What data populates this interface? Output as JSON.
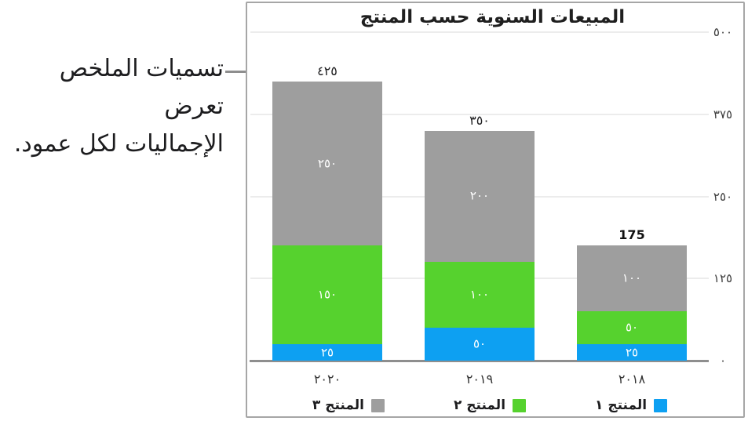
{
  "annotation": {
    "lines": [
      "تسميات الملخص تعرض",
      "الإجماليات لكل عمود."
    ]
  },
  "chart_data": {
    "type": "bar",
    "stacked": true,
    "direction": "rtl",
    "title": "المبيعات السنوية حسب المنتج",
    "categories": [
      "٢٠٢٠",
      "٢٠١٩",
      "٢٠١٨"
    ],
    "series": [
      {
        "name": "المنتج ١",
        "color": "#0da0f2",
        "values": [
          25,
          50,
          25
        ],
        "value_labels": [
          "٢٥",
          "٥٠",
          "٢٥"
        ]
      },
      {
        "name": "المنتج ٢",
        "color": "#56d22e",
        "values": [
          150,
          100,
          50
        ],
        "value_labels": [
          "١٥٠",
          "١٠٠",
          "٥٠"
        ]
      },
      {
        "name": "المنتج ٣",
        "color": "#9e9e9e",
        "values": [
          250,
          200,
          100
        ],
        "value_labels": [
          "٢٥٠",
          "٢٠٠",
          "١٠٠"
        ]
      }
    ],
    "totals": {
      "values": [
        425,
        350,
        175
      ],
      "labels": [
        "٤٢٥",
        "٣٥٠",
        "175"
      ],
      "bold": [
        false,
        false,
        true
      ]
    },
    "y_axis": {
      "side": "right",
      "min": 0,
      "max": 500,
      "ticks": [
        500,
        375,
        250,
        125,
        0
      ],
      "labels": [
        "٥٠٠",
        "٣٧٥",
        "٢٥٠",
        "١٢٥",
        "٠"
      ]
    },
    "legend": {
      "position": "bottom",
      "order": [
        "المنتج ٣",
        "المنتج ٢",
        "المنتج ١"
      ]
    },
    "grid": true
  }
}
